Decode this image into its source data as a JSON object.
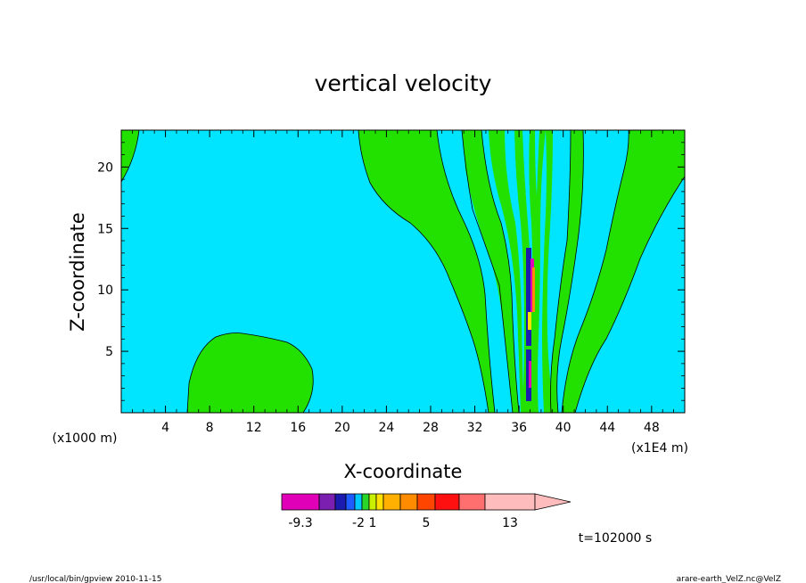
{
  "chart_data": {
    "type": "heatmap",
    "title": "vertical velocity",
    "xlabel": "X-coordinate",
    "ylabel": "Z-coordinate",
    "x_unit": "(x1E4 m)",
    "y_unit": "(x1000 m)",
    "xlim": [
      0,
      51
    ],
    "ylim": [
      0,
      23
    ],
    "x_ticks": [
      4,
      8,
      12,
      16,
      20,
      24,
      28,
      32,
      36,
      40,
      44,
      48
    ],
    "y_ticks": [
      5,
      10,
      15,
      20
    ],
    "time_label": "t=102000 s",
    "colorbar": {
      "labels": [
        {
          "text": "-9.3",
          "index": 0
        },
        {
          "text": "-2",
          "index": 4
        },
        {
          "text": "1",
          "index": 6
        },
        {
          "text": "5",
          "index": 10
        },
        {
          "text": "13",
          "index": 13
        }
      ],
      "colors": [
        "#e000b8",
        "#7a1fb0",
        "#1b1bb0",
        "#1f5cff",
        "#00c8ff",
        "#29d629",
        "#c8f000",
        "#ffe000",
        "#ffb000",
        "#ff8c00",
        "#ff4500",
        "#ff1010",
        "#ff6f6f",
        "#ffbcbc"
      ]
    },
    "background_color": "#00e5ff",
    "contour_fill_color": "#22e000"
  },
  "footer": {
    "left": "/usr/local/bin/gpview  2010-11-15",
    "right": "arare-earth_VelZ.nc@VelZ"
  }
}
